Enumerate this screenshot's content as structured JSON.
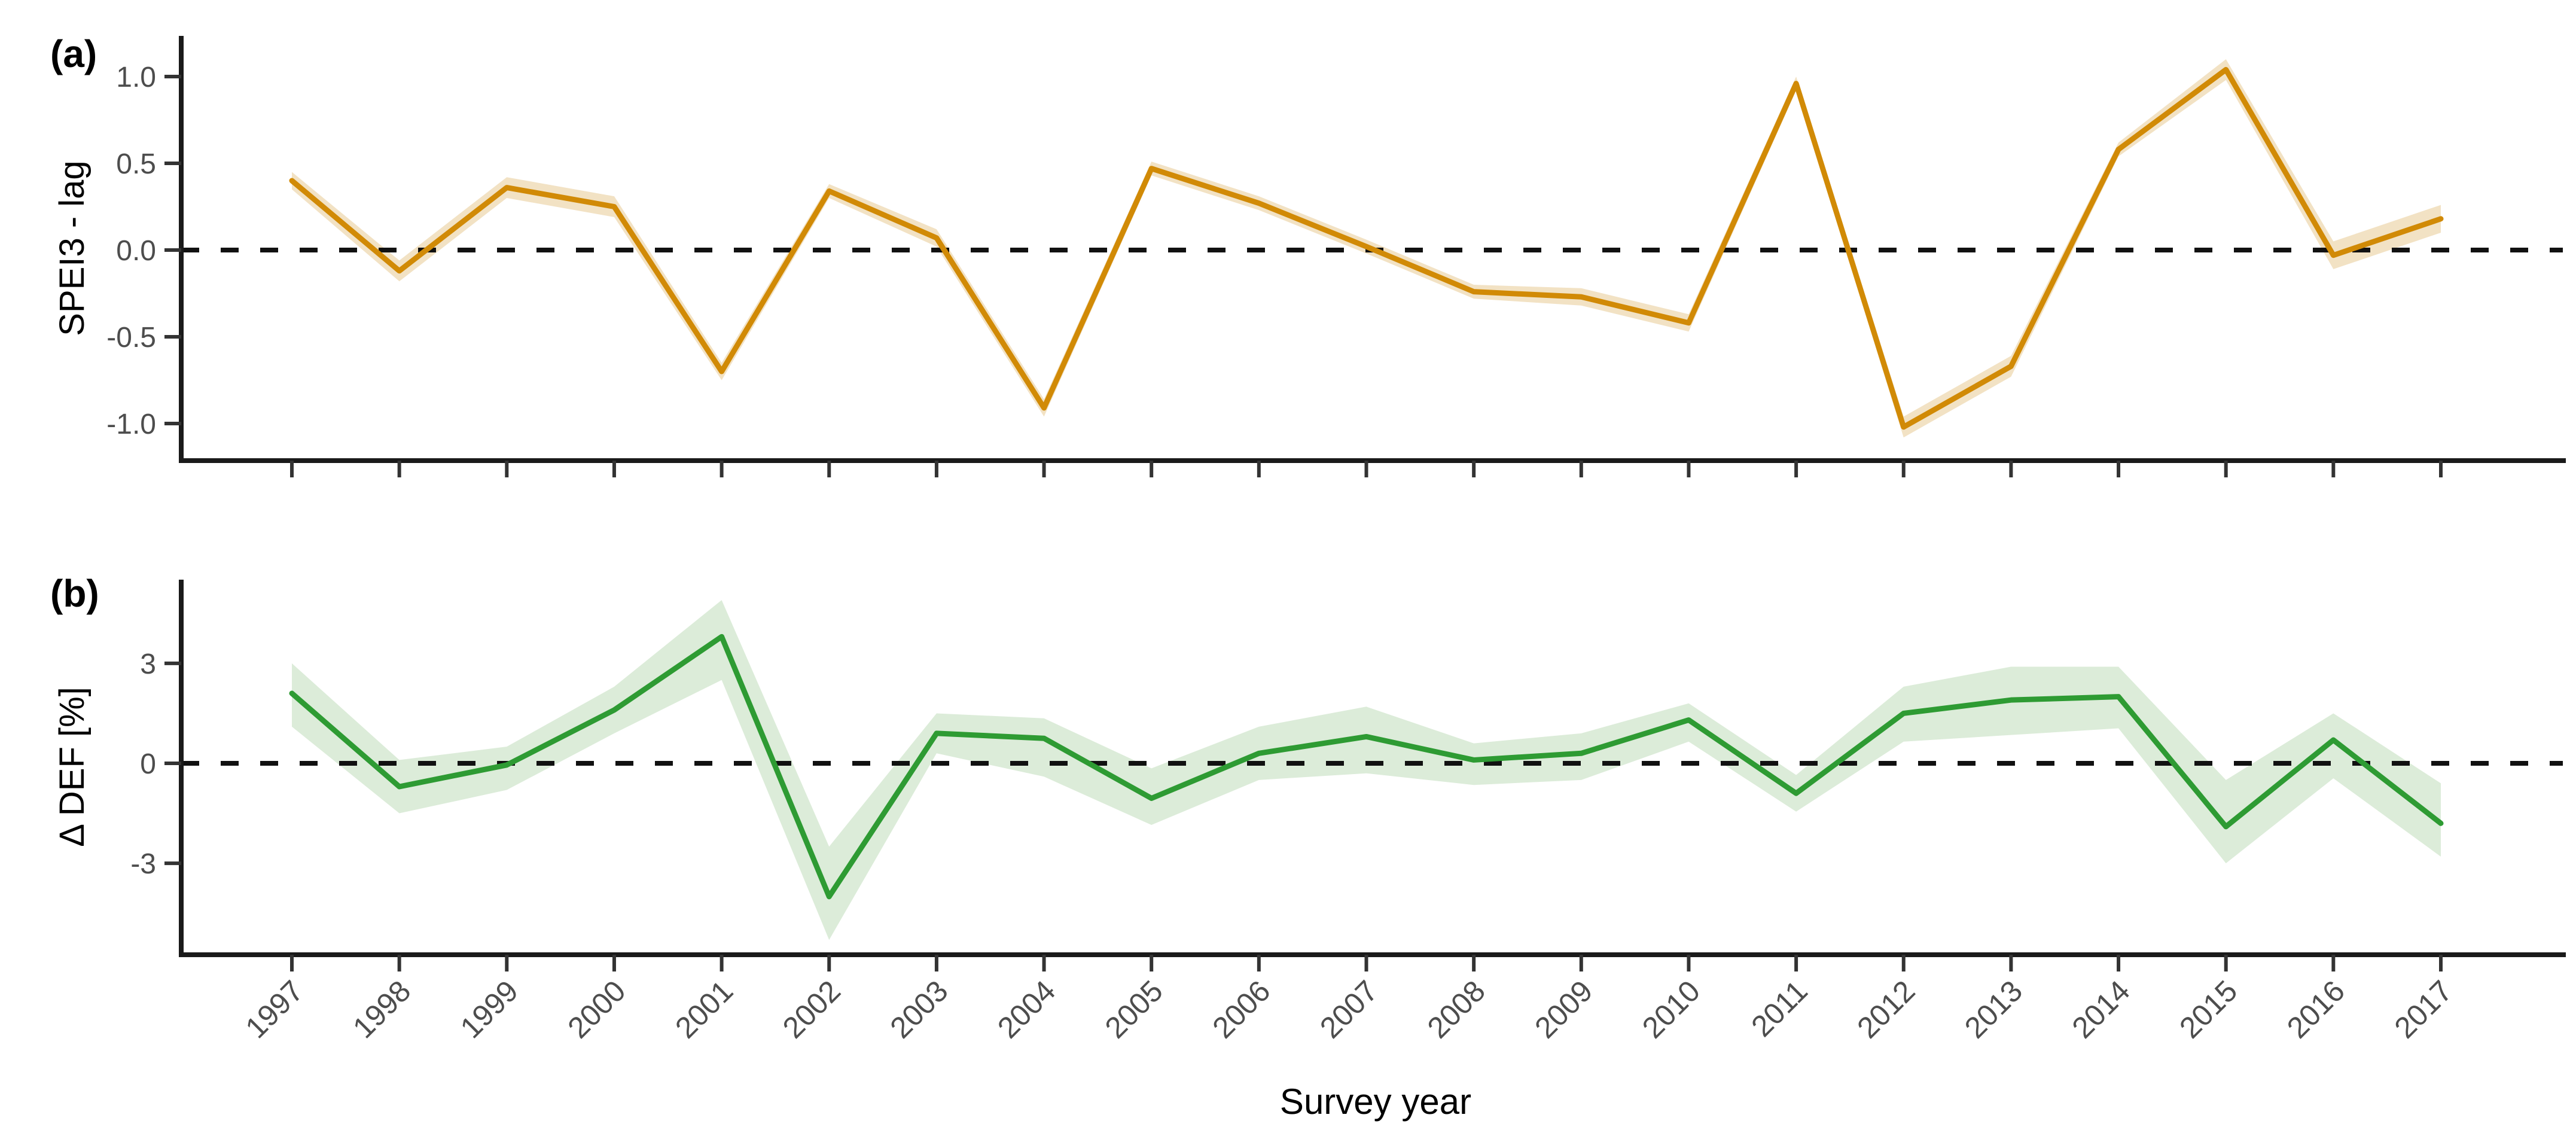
{
  "figure": {
    "background": "#ffffff",
    "x_axis_title": "Survey year",
    "axis_color": "#1a1a1a",
    "tick_color": "#333333",
    "tick_label_color": "#4d4d4d",
    "zero_line_color": "#111111",
    "zero_line_style": "dashed"
  },
  "chart_data": [
    {
      "type": "line",
      "panel": "(a)",
      "ylabel": "SPEI3 - lag",
      "x": [
        1997,
        1998,
        1999,
        2000,
        2001,
        2002,
        2003,
        2004,
        2005,
        2006,
        2007,
        2008,
        2009,
        2010,
        2011,
        2012,
        2013,
        2014,
        2015,
        2016,
        2017
      ],
      "series": [
        {
          "name": "SPEI3 - lag",
          "values": [
            0.4,
            -0.12,
            0.36,
            0.25,
            -0.7,
            0.34,
            0.07,
            -0.91,
            0.47,
            0.27,
            0.02,
            -0.24,
            -0.27,
            -0.42,
            0.96,
            -1.02,
            -0.67,
            0.58,
            1.04,
            -0.03,
            0.18
          ],
          "band_upper": [
            0.45,
            -0.06,
            0.42,
            0.31,
            -0.65,
            0.38,
            0.12,
            -0.86,
            0.51,
            0.31,
            0.06,
            -0.2,
            -0.22,
            -0.37,
            1.0,
            -0.96,
            -0.61,
            0.62,
            1.1,
            0.05,
            0.26
          ],
          "band_lower": [
            0.35,
            -0.18,
            0.3,
            0.19,
            -0.75,
            0.3,
            0.02,
            -0.96,
            0.43,
            0.23,
            -0.02,
            -0.28,
            -0.32,
            -0.47,
            0.92,
            -1.08,
            -0.73,
            0.54,
            0.98,
            -0.11,
            0.1
          ]
        }
      ],
      "yticks": [
        1.0,
        0.5,
        0.0,
        -0.5,
        -1.0
      ],
      "ytick_labels": [
        "1.0",
        "0.5",
        "0.0",
        "-0.5",
        "-1.0"
      ],
      "ylim": [
        -1.23,
        1.24
      ],
      "hline": 0,
      "line_color": "#d18a06",
      "band_color": "#f2e2c4",
      "grid": false,
      "legend": "none"
    },
    {
      "type": "line",
      "panel": "(b)",
      "ylabel": "Δ DEF [%]",
      "xlabel": "Survey year",
      "x": [
        1997,
        1998,
        1999,
        2000,
        2001,
        2002,
        2003,
        2004,
        2005,
        2006,
        2007,
        2008,
        2009,
        2010,
        2011,
        2012,
        2013,
        2014,
        2015,
        2016,
        2017
      ],
      "xtick_labels": [
        "1997",
        "1998",
        "1999",
        "2000",
        "2001",
        "2002",
        "2003",
        "2004",
        "2005",
        "2006",
        "2007",
        "2008",
        "2009",
        "2010",
        "2011",
        "2012",
        "2013",
        "2014",
        "2015",
        "2016",
        "2017"
      ],
      "series": [
        {
          "name": "Δ DEF [%]",
          "values": [
            2.1,
            -0.7,
            -0.05,
            1.6,
            3.8,
            -4.0,
            0.9,
            0.75,
            -1.05,
            0.3,
            0.8,
            0.1,
            0.3,
            1.3,
            -0.9,
            1.5,
            1.9,
            2.0,
            -1.9,
            0.7,
            -1.8
          ],
          "band_upper": [
            3.0,
            0.1,
            0.5,
            2.3,
            4.9,
            -2.5,
            1.5,
            1.35,
            -0.15,
            1.1,
            1.7,
            0.6,
            0.9,
            1.8,
            -0.35,
            2.3,
            2.9,
            2.9,
            -0.5,
            1.5,
            -0.6
          ],
          "band_lower": [
            1.1,
            -1.5,
            -0.8,
            0.9,
            2.5,
            -5.3,
            0.3,
            -0.4,
            -1.85,
            -0.5,
            -0.3,
            -0.65,
            -0.5,
            0.65,
            -1.45,
            0.65,
            0.85,
            1.05,
            -3.0,
            -0.45,
            -2.8
          ]
        }
      ],
      "yticks": [
        3,
        0,
        -3
      ],
      "ytick_labels": [
        "3",
        "0",
        "-3"
      ],
      "ylim": [
        -5.75,
        5.5
      ],
      "hline": 0,
      "line_color": "#2e9b33",
      "band_color": "#dcecd9",
      "grid": false,
      "legend": "none"
    }
  ]
}
